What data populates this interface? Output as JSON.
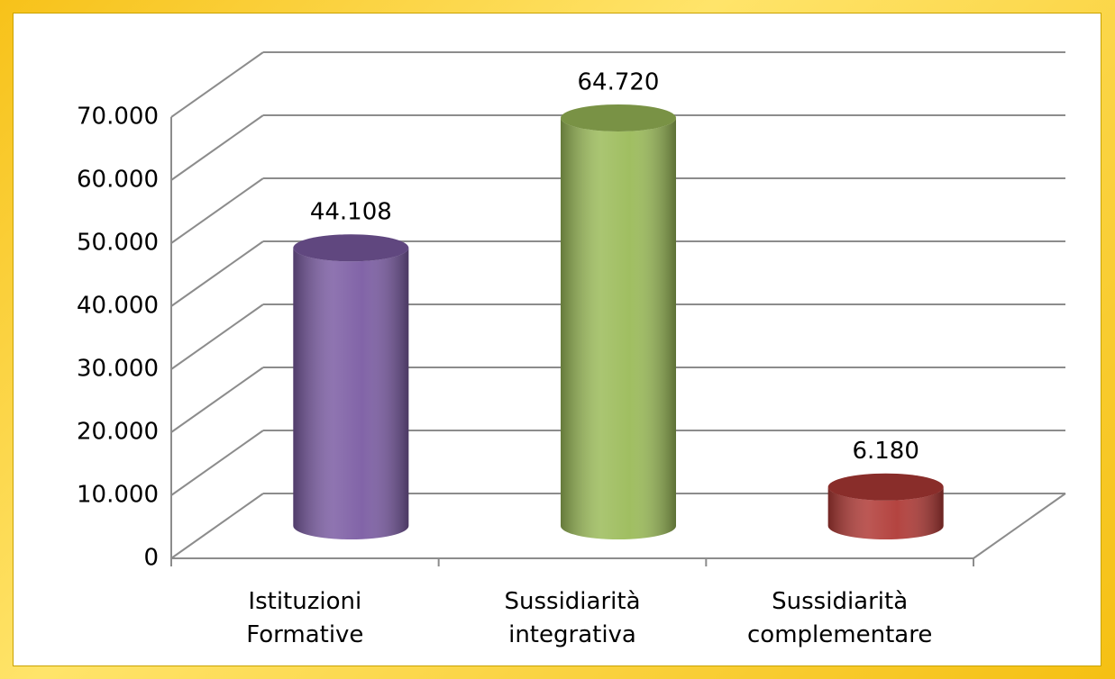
{
  "chart_data": {
    "type": "bar3d",
    "categories": [
      "Istituzioni Formative",
      "Sussidiarità integrativa",
      "Sussidiarità complementare"
    ],
    "values": [
      44108,
      64720,
      6180
    ],
    "value_labels": [
      "44.108",
      "64.720",
      "6.180"
    ],
    "colors": [
      "#7b5ca3",
      "#9bbb59",
      "#b03a36"
    ],
    "ylim": [
      0,
      70000
    ],
    "yticks": [
      0,
      {
        "value": 10000,
        "label": "10.000"
      },
      {
        "value": 20000,
        "label": "20.000"
      },
      {
        "value": 30000,
        "label": "30.000"
      },
      {
        "value": 40000,
        "label": "40.000"
      },
      {
        "value": 50000,
        "label": "50.000"
      },
      {
        "value": 60000,
        "label": "60.000"
      },
      {
        "value": 70000,
        "label": "70.000"
      }
    ],
    "grid": true
  }
}
